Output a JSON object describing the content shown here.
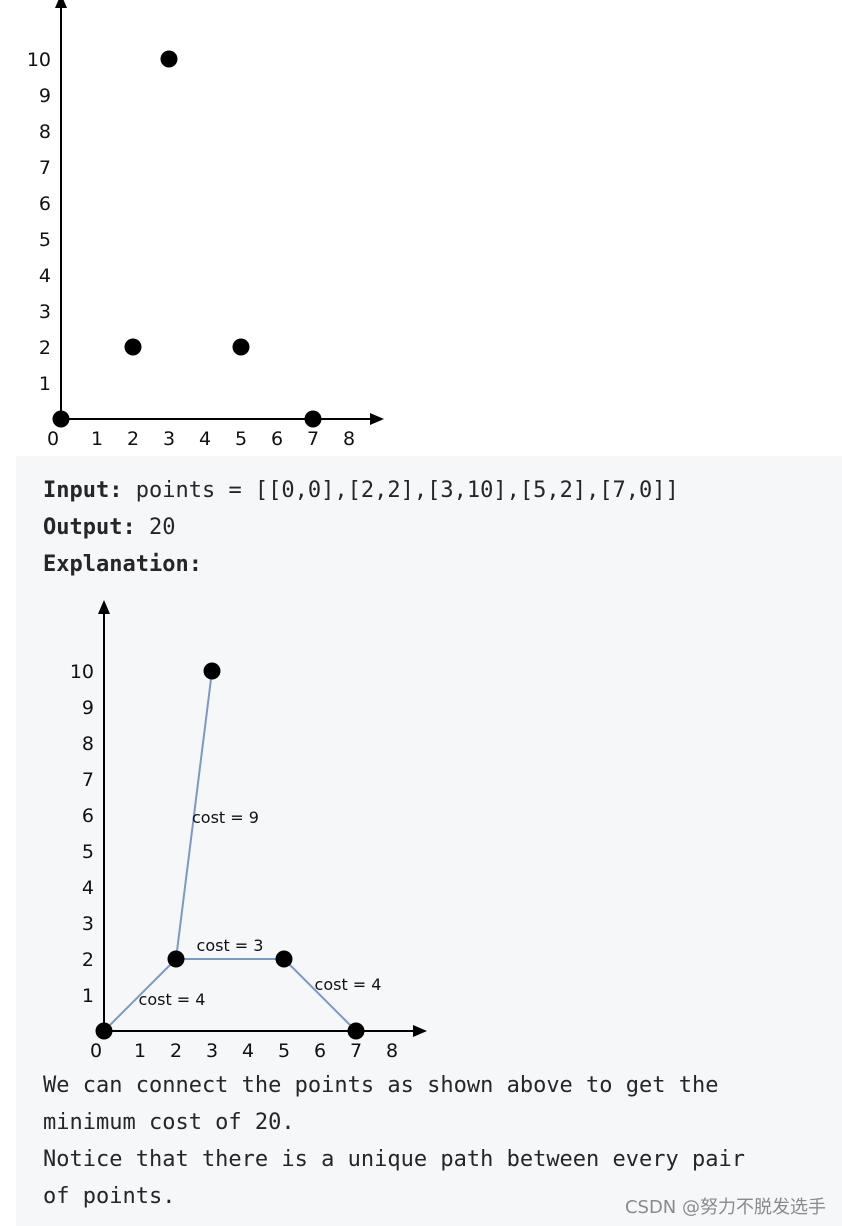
{
  "chart_data": [
    {
      "type": "scatter",
      "x_ticks": [
        0,
        1,
        2,
        3,
        4,
        5,
        6,
        7,
        8
      ],
      "y_ticks": [
        1,
        2,
        3,
        4,
        5,
        6,
        7,
        8,
        9,
        10
      ],
      "points": [
        [
          0,
          0
        ],
        [
          2,
          2
        ],
        [
          3,
          10
        ],
        [
          5,
          2
        ],
        [
          7,
          0
        ]
      ]
    },
    {
      "type": "scatter",
      "x_ticks": [
        0,
        1,
        2,
        3,
        4,
        5,
        6,
        7,
        8
      ],
      "y_ticks": [
        1,
        2,
        3,
        4,
        5,
        6,
        7,
        8,
        9,
        10
      ],
      "points": [
        [
          0,
          0
        ],
        [
          2,
          2
        ],
        [
          3,
          10
        ],
        [
          5,
          2
        ],
        [
          7,
          0
        ]
      ],
      "edges": [
        {
          "from": [
            0,
            0
          ],
          "to": [
            2,
            2
          ],
          "label": "cost = 4"
        },
        {
          "from": [
            2,
            2
          ],
          "to": [
            5,
            2
          ],
          "label": "cost = 3"
        },
        {
          "from": [
            2,
            2
          ],
          "to": [
            3,
            10
          ],
          "label": "cost = 9"
        },
        {
          "from": [
            5,
            2
          ],
          "to": [
            7,
            0
          ],
          "label": "cost = 4"
        }
      ],
      "edge_color": "#7c99c4"
    }
  ],
  "example": {
    "input_label": "Input:",
    "input_value": " points = [[0,0],[2,2],[3,10],[5,2],[7,0]]",
    "output_label": "Output:",
    "output_value": " 20",
    "explanation_label": "Explanation:",
    "explanation_lines": [
      "We can connect the points as shown above to get the",
      "minimum cost of 20.",
      "Notice that there is a unique path between every pair",
      "of points."
    ]
  },
  "watermark": "CSDN @努力不脱发选手"
}
